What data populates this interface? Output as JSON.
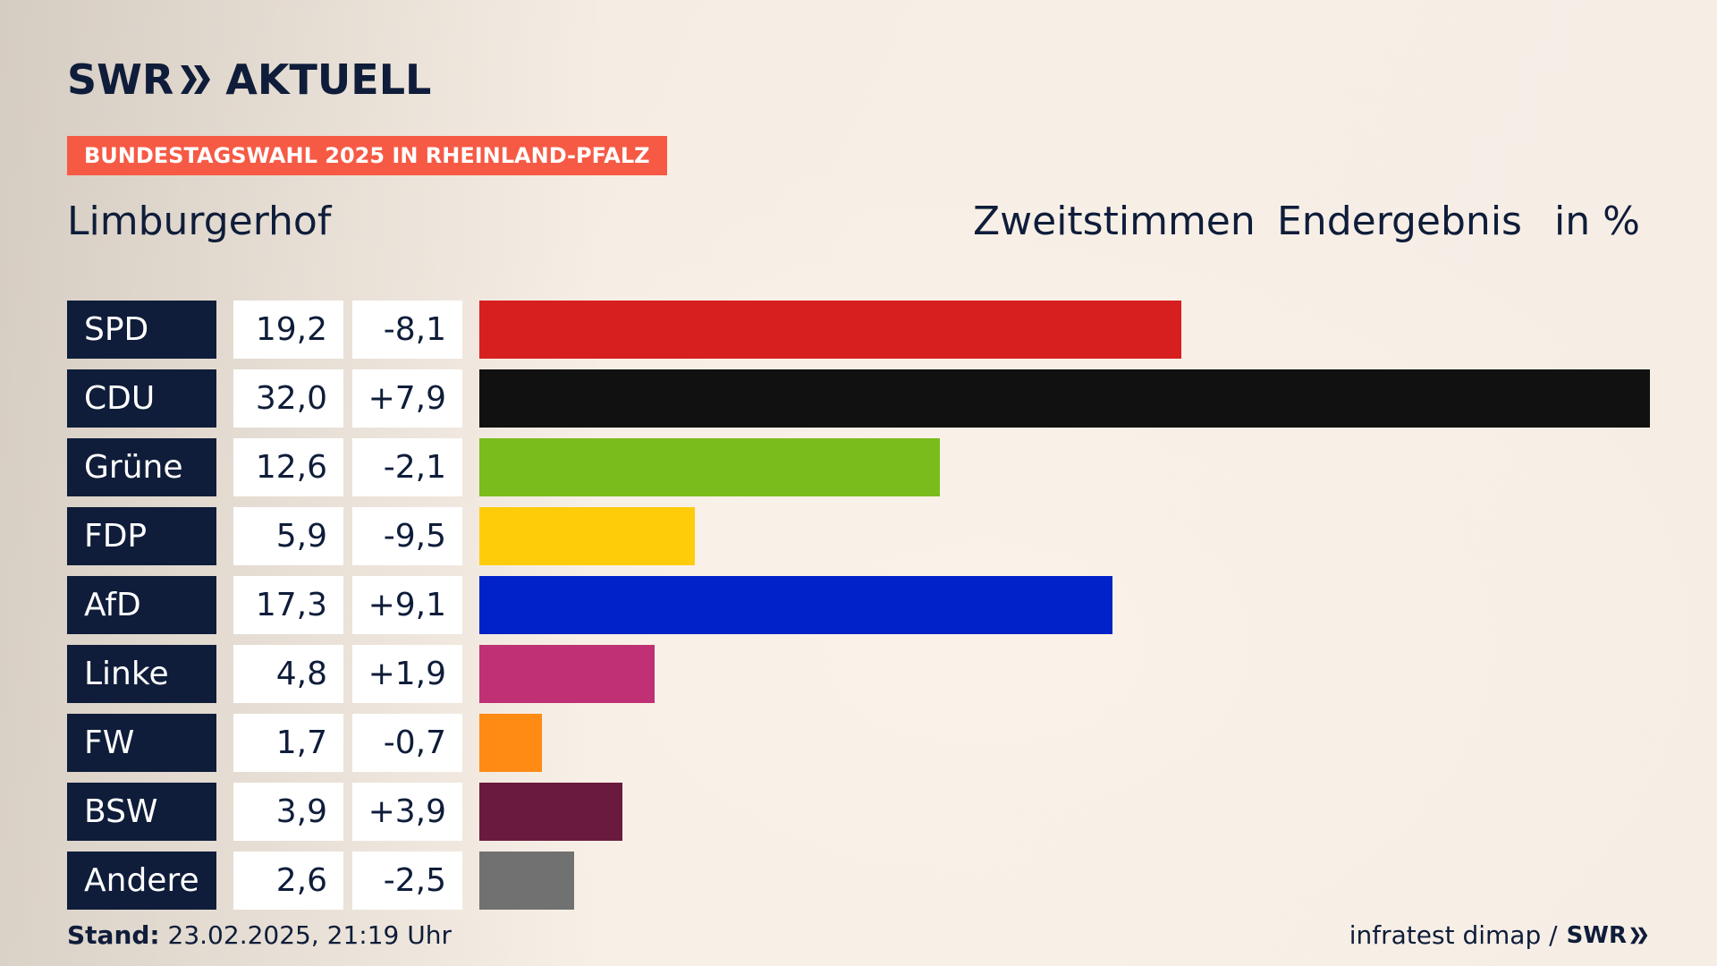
{
  "brand": {
    "name_left": "SWR",
    "name_right": "AKTUELL",
    "color": "#0f1d3a"
  },
  "tag": {
    "label": "BUNDESTAGSWAHL 2025 IN RHEINLAND-PFALZ",
    "color": "#f65a45"
  },
  "header": {
    "place": "Limburgerhof",
    "vote_type": "Zweitstimmen",
    "result_type": "Endergebnis",
    "unit": "in %"
  },
  "chart_data": {
    "type": "bar",
    "orientation": "horizontal",
    "categories": [
      "SPD",
      "CDU",
      "Grüne",
      "FDP",
      "AfD",
      "Linke",
      "FW",
      "BSW",
      "Andere"
    ],
    "values": [
      19.2,
      32.0,
      12.6,
      5.9,
      17.3,
      4.8,
      1.7,
      3.9,
      2.6
    ],
    "values_label": [
      "19,2",
      "32,0",
      "12,6",
      "5,9",
      "17,3",
      "4,8",
      "1,7",
      "3,9",
      "2,6"
    ],
    "diffs_label": [
      "-8,1",
      "+7,9",
      "-2,1",
      "-9,5",
      "+9,1",
      "+1,9",
      "-0,7",
      "+3,9",
      "-2,5"
    ],
    "colors": [
      "#d71f1f",
      "#111111",
      "#79bc1c",
      "#ffcc0a",
      "#0022c8",
      "#bf3075",
      "#ff8a14",
      "#6a1a3d",
      "#717171"
    ],
    "xlim": [
      0,
      32.0
    ],
    "grid": false,
    "legend": "none"
  },
  "footer": {
    "stand_label": "Stand:",
    "stand_value": "23.02.2025, 21:19 Uhr",
    "source": "infratest dimap /",
    "source_brand": "SWR"
  }
}
